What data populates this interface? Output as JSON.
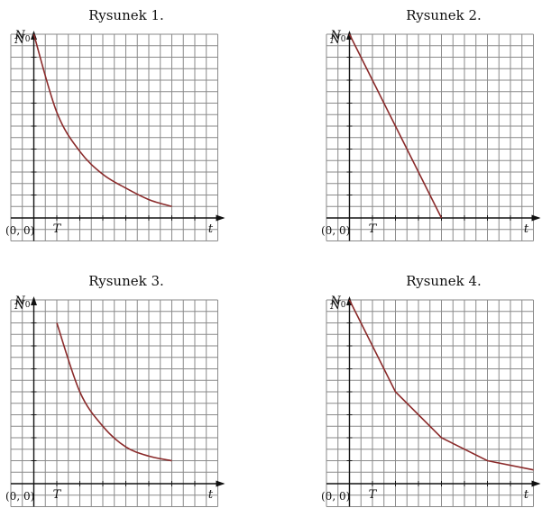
{
  "chart_data": [
    {
      "title": "Rysunek 1.",
      "type": "line",
      "ylabel": "N",
      "y0_label": "N0",
      "xlabel": "t",
      "x_tick_label": "T",
      "origin_label": "(0, 0)",
      "curve": "exponential",
      "points": [
        [
          0,
          8
        ],
        [
          1,
          4.6
        ],
        [
          2,
          2.9
        ],
        [
          3,
          1.9
        ],
        [
          4,
          1.3
        ],
        [
          5,
          0.8
        ],
        [
          6,
          0.5
        ]
      ],
      "color": "#8b2b2b"
    },
    {
      "title": "Rysunek 2.",
      "type": "line",
      "ylabel": "N",
      "y0_label": "N0",
      "xlabel": "t",
      "x_tick_label": "T",
      "origin_label": "(0, 0)",
      "curve": "linear",
      "points": [
        [
          0,
          8
        ],
        [
          4,
          0
        ]
      ],
      "color": "#8b2b2b"
    },
    {
      "title": "Rysunek 3.",
      "type": "line",
      "ylabel": "N",
      "y0_label": "N0",
      "xlabel": "t",
      "x_tick_label": "T",
      "origin_label": "(0, 0)",
      "curve": "exponential",
      "points": [
        [
          1,
          7
        ],
        [
          2,
          4.0
        ],
        [
          3,
          2.5
        ],
        [
          4,
          1.6
        ],
        [
          5,
          1.2
        ],
        [
          6,
          1.0
        ]
      ],
      "color": "#8b2b2b"
    },
    {
      "title": "Rysunek 4.",
      "type": "line",
      "ylabel": "N",
      "y0_label": "N0",
      "xlabel": "t",
      "x_tick_label": "T",
      "origin_label": "(0, 0)",
      "curve": "piecewise-linear",
      "points": [
        [
          0,
          8
        ],
        [
          2,
          4
        ],
        [
          4,
          2
        ],
        [
          6,
          1
        ],
        [
          8,
          0.6
        ]
      ],
      "color": "#8b2b2b"
    }
  ]
}
